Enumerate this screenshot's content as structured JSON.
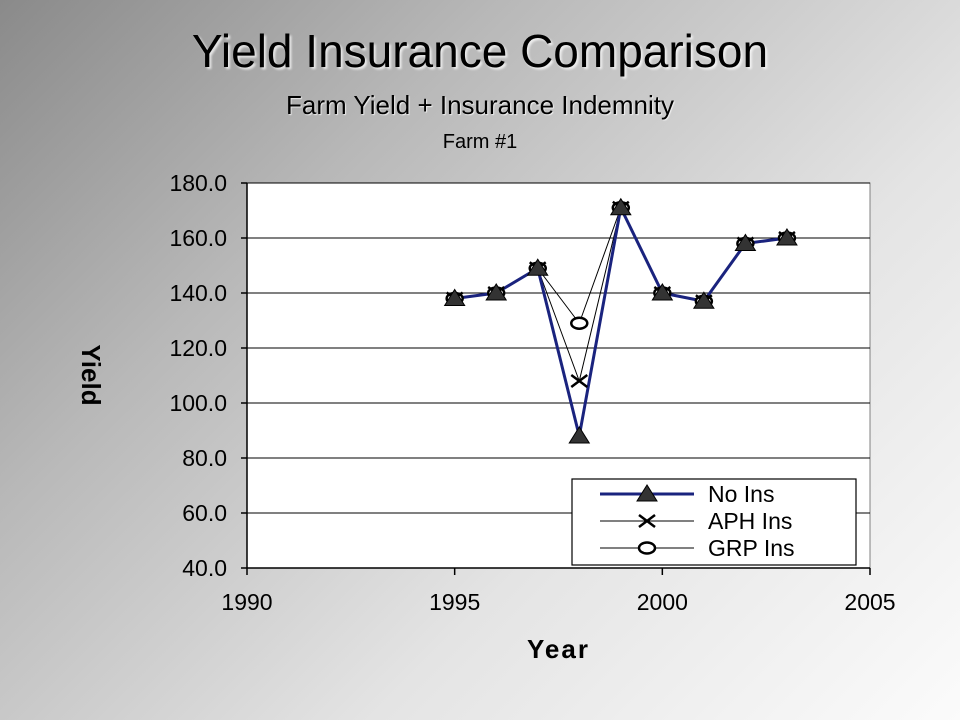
{
  "slide": {
    "title": "Yield Insurance Comparison",
    "subtitle": "Farm Yield + Insurance Indemnity",
    "subsubtitle": "Farm #1"
  },
  "chart_data": {
    "type": "line",
    "xlabel": "Year",
    "ylabel": "Yield",
    "xlim": [
      1990,
      2005
    ],
    "ylim": [
      40,
      180
    ],
    "xticks": [
      1990,
      1995,
      2000,
      2005
    ],
    "xtick_labels": [
      "1990",
      "1995",
      "2000",
      "2005"
    ],
    "yticks": [
      40,
      60,
      80,
      100,
      120,
      140,
      160,
      180
    ],
    "ytick_labels": [
      "40.0",
      "60.0",
      "80.0",
      "100.0",
      "120.0",
      "140.0",
      "160.0",
      "180.0"
    ],
    "grid": "horizontal",
    "legend_position": "bottom-right",
    "x": [
      1995,
      1996,
      1997,
      1998,
      1999,
      2000,
      2001,
      2002,
      2003
    ],
    "series": [
      {
        "name": "No Ins",
        "color": "#1a237e",
        "marker": "triangle",
        "values": [
          138,
          140,
          149,
          88,
          171,
          140,
          137,
          158,
          160
        ]
      },
      {
        "name": "APH Ins",
        "color": "#000000",
        "marker": "x",
        "values": [
          138,
          140,
          149,
          108,
          171,
          140,
          137,
          158,
          160
        ]
      },
      {
        "name": "GRP Ins",
        "color": "#000000",
        "marker": "circle",
        "values": [
          138,
          140,
          149,
          129,
          171,
          140,
          137,
          158,
          160
        ]
      }
    ]
  }
}
